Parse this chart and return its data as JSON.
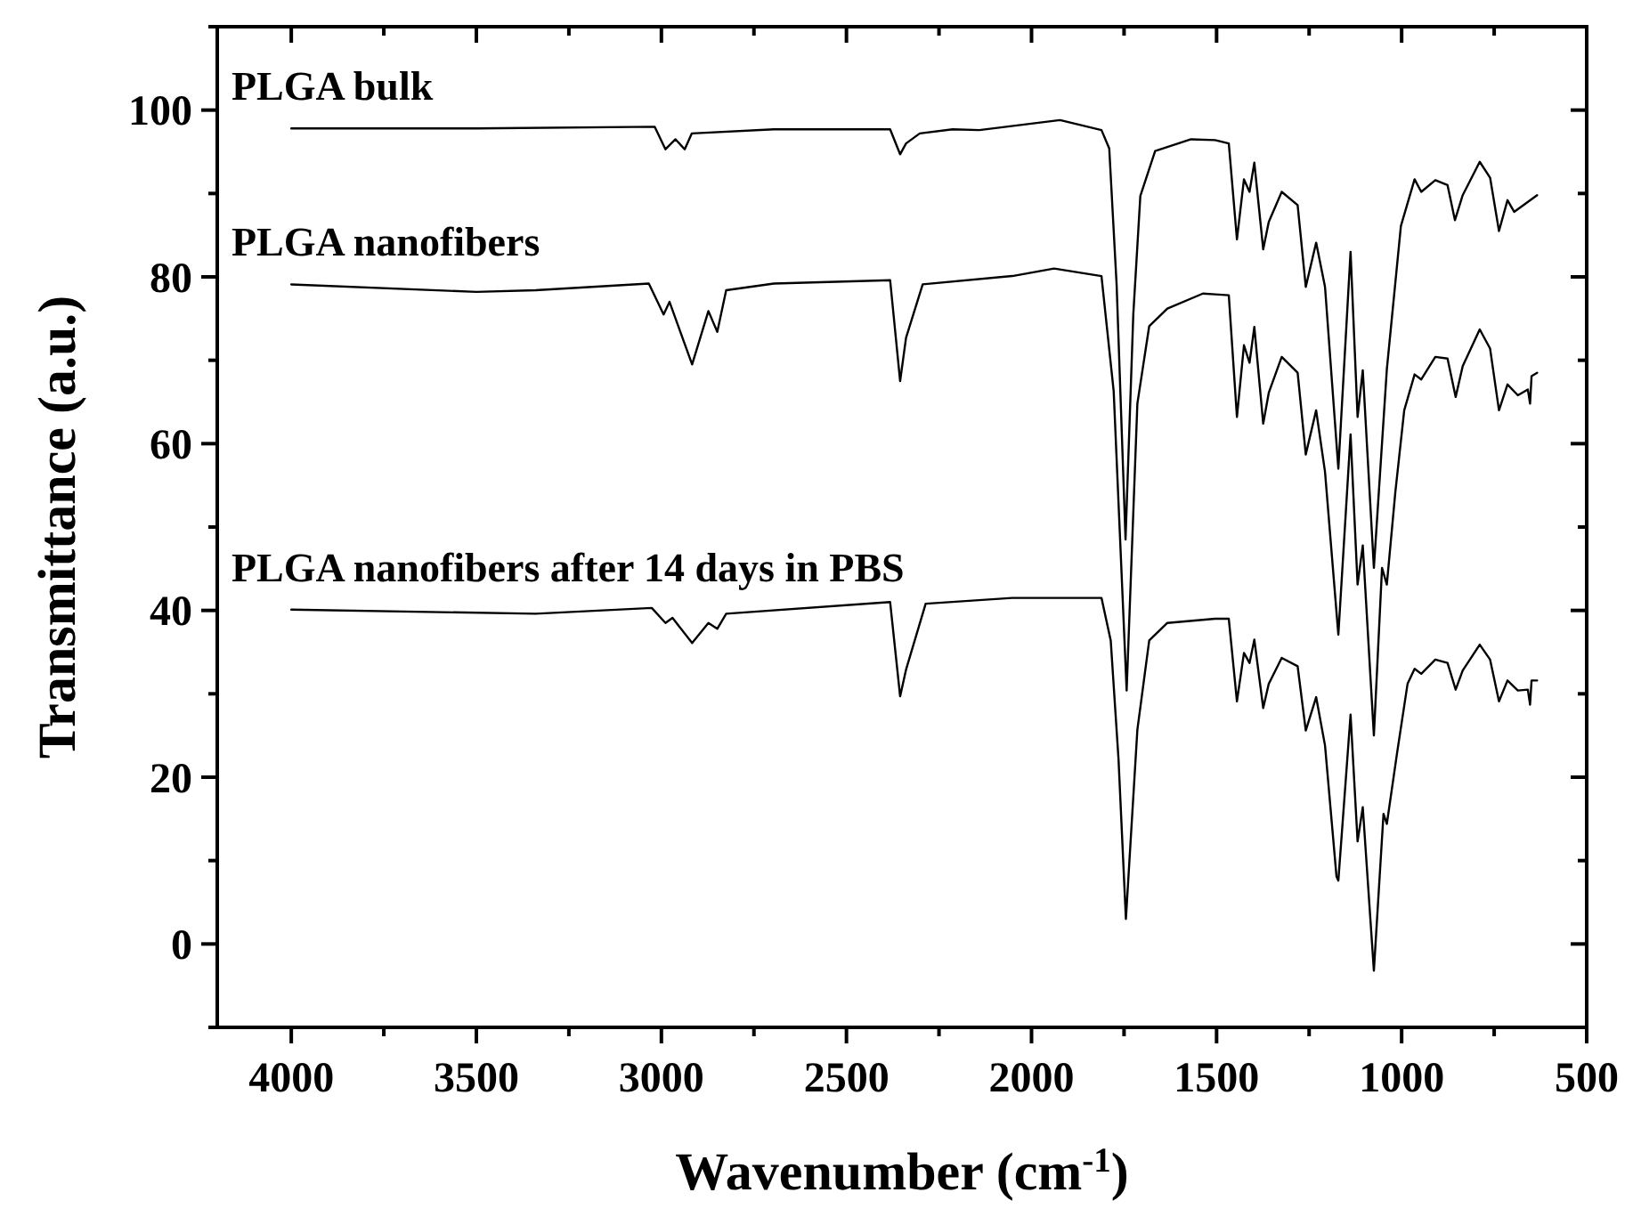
{
  "chart_data": {
    "type": "line",
    "xlabel": "Wavenumber (cm$^{-1}$)",
    "ylabel": "Transmittance (a.u.)",
    "xlim": [
      4200,
      500
    ],
    "xticks": [
      4000,
      {
        "value": 3750,
        "label": null
      },
      3500,
      {
        "value": 3250,
        "label": null
      },
      3000,
      {
        "value": 2750,
        "label": null
      },
      2500,
      {
        "value": 2250,
        "label": null
      },
      2000,
      {
        "value": 1750,
        "label": null
      },
      1500,
      {
        "value": 1250,
        "label": null
      },
      1000,
      {
        "value": 750,
        "label": null
      },
      500
    ],
    "ylim": [
      -10,
      110
    ],
    "yticks": [
      {
        "value": -10,
        "label": null
      },
      0,
      {
        "value": 10,
        "label": null
      },
      20,
      {
        "value": 30,
        "label": null
      },
      40,
      {
        "value": 50,
        "label": null
      },
      60,
      {
        "value": 70,
        "label": null
      },
      80,
      {
        "value": 90,
        "label": null
      },
      100,
      {
        "value": 110,
        "label": null
      }
    ],
    "grid": false,
    "legend": "top left",
    "line_style": "solid",
    "marker": "none",
    "series": [
      {
        "name": "PLGA bulk",
        "color": "#000000",
        "x": [
          4000,
          3500,
          3018,
          2989,
          2962,
          2937,
          2918,
          2696,
          2382,
          2355,
          2339,
          2302,
          2213,
          2141,
          1923,
          1811,
          1790,
          1770,
          1746,
          1725,
          1706,
          1666,
          1569,
          1504,
          1467,
          1445,
          1426,
          1411,
          1398,
          1374,
          1359,
          1324,
          1281,
          1259,
          1231,
          1207,
          1171,
          1138,
          1119,
          1105,
          1075,
          1040,
          1002,
          965,
          947,
          909,
          876,
          856,
          835,
          789,
          761,
          737,
          714,
          696,
          634
        ],
        "values": [
          97.8,
          97.8,
          98,
          95.3,
          96.5,
          95.3,
          97.2,
          97.7,
          97.7,
          94.7,
          96,
          97.2,
          97.7,
          97.6,
          98.8,
          97.6,
          95.4,
          79,
          48.5,
          75.5,
          89.7,
          95.1,
          96.5,
          96.4,
          96,
          84.5,
          91.7,
          90.2,
          93.7,
          83.3,
          86.6,
          90.2,
          88.6,
          78.8,
          84.1,
          78.8,
          57,
          83,
          63.2,
          68.8,
          45.1,
          68.9,
          86.1,
          91.7,
          90.2,
          91.6,
          91,
          86.8,
          89.8,
          93.8,
          91.9,
          85.5,
          89.2,
          87.8,
          89.8
        ]
      },
      {
        "name": "PLGA nanofibers",
        "color": "#000000",
        "x": [
          4000,
          3500,
          3340,
          3034,
          2994,
          2978,
          2917,
          2873,
          2849,
          2825,
          2696,
          2382,
          2355,
          2339,
          2294,
          2052,
          1939,
          1811,
          1778,
          1743,
          1714,
          1682,
          1633,
          1537,
          1504,
          1467,
          1445,
          1426,
          1411,
          1398,
          1374,
          1359,
          1324,
          1281,
          1259,
          1231,
          1207,
          1171,
          1138,
          1119,
          1105,
          1075,
          1053,
          1040,
          1017,
          993,
          965,
          947,
          909,
          876,
          854,
          835,
          789,
          761,
          737,
          714,
          686,
          659,
          653,
          649,
          634
        ],
        "values": [
          79.1,
          78.2,
          78.4,
          79.2,
          75.5,
          77,
          69.5,
          75.9,
          73.4,
          78.4,
          79.2,
          79.6,
          67.5,
          72.7,
          79.1,
          80.1,
          81,
          80.1,
          66.3,
          30.4,
          64.8,
          74.1,
          76.2,
          78,
          77.9,
          77.8,
          63.2,
          71.8,
          69.7,
          74,
          62.4,
          66.1,
          70.4,
          68.5,
          58.7,
          64,
          56.6,
          37.1,
          61.1,
          43.1,
          47.8,
          25,
          45.1,
          43.1,
          54.2,
          64,
          68.3,
          67.7,
          70.4,
          70.2,
          65.6,
          69.3,
          73.7,
          71.4,
          64,
          67.1,
          65.8,
          66.5,
          64.8,
          68.1,
          68.5
        ]
      },
      {
        "name": "PLGA nanofibers after 14 days in PBS",
        "color": "#000000",
        "x": [
          4000,
          3340,
          3026,
          2989,
          2970,
          2917,
          2873,
          2849,
          2825,
          2382,
          2355,
          2339,
          2286,
          2052,
          1811,
          1786,
          1765,
          1745,
          1714,
          1682,
          1633,
          1504,
          1467,
          1445,
          1426,
          1411,
          1398,
          1374,
          1359,
          1324,
          1281,
          1259,
          1231,
          1207,
          1176,
          1171,
          1138,
          1119,
          1105,
          1075,
          1049,
          1040,
          1012,
          984,
          965,
          947,
          909,
          876,
          854,
          835,
          789,
          761,
          737,
          714,
          686,
          659,
          653,
          649,
          634
        ],
        "values": [
          40.1,
          39.6,
          40.3,
          38.5,
          39.1,
          36.1,
          38.5,
          37.8,
          39.6,
          41,
          29.7,
          32.9,
          40.8,
          41.5,
          41.5,
          36.4,
          22.2,
          3,
          25.7,
          36.4,
          38.5,
          39,
          39,
          29.1,
          34.9,
          33.7,
          36.5,
          28.3,
          31.2,
          34.3,
          33.3,
          25.6,
          29.6,
          23.8,
          8.1,
          7.6,
          27.5,
          12.3,
          16.4,
          -3.2,
          15.6,
          14.4,
          23,
          31.2,
          33,
          32.4,
          34.1,
          33.7,
          30.5,
          32.8,
          35.9,
          34.1,
          29.1,
          31.6,
          30.4,
          30.5,
          28.7,
          31.6,
          31.6
        ]
      }
    ]
  }
}
